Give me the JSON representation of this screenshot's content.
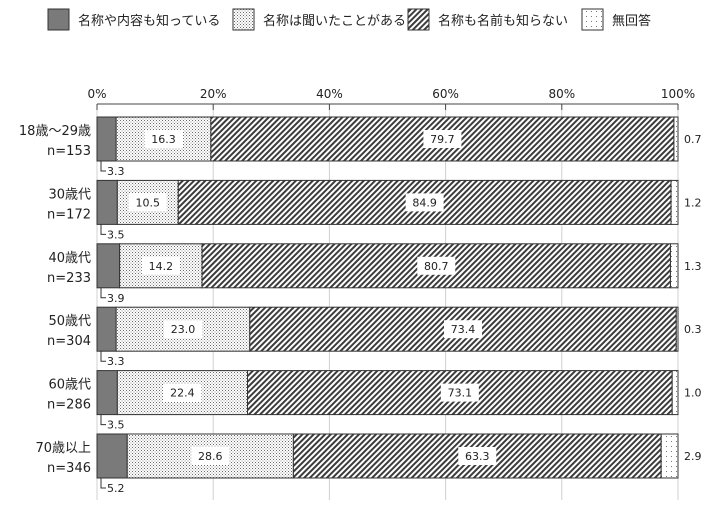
{
  "chart_data": {
    "type": "bar",
    "orientation": "horizontal",
    "stacked": true,
    "xlim": [
      0,
      100
    ],
    "x_ticks": [
      "0%",
      "20%",
      "40%",
      "60%",
      "80%",
      "100%"
    ],
    "legend_position": "top",
    "categories": [
      {
        "label": "18歳～29歳",
        "n": "n=153"
      },
      {
        "label": "30歳代",
        "n": "n=172"
      },
      {
        "label": "40歳代",
        "n": "n=233"
      },
      {
        "label": "50歳代",
        "n": "n=304"
      },
      {
        "label": "60歳代",
        "n": "n=286"
      },
      {
        "label": "70歳以上",
        "n": "n=346"
      }
    ],
    "series": [
      {
        "name": "名称や内容も知っている",
        "pattern": "solid-gray",
        "values": [
          3.3,
          3.5,
          3.9,
          3.3,
          3.5,
          5.2
        ]
      },
      {
        "name": "名称は聞いたことがある",
        "pattern": "dense-dots",
        "values": [
          16.3,
          10.5,
          14.2,
          23.0,
          22.4,
          28.6
        ]
      },
      {
        "name": "名称も名前も知らない",
        "pattern": "diagonal-hatch",
        "values": [
          79.7,
          84.9,
          80.7,
          73.4,
          73.1,
          63.3
        ]
      },
      {
        "name": "無回答",
        "pattern": "sparse-dots",
        "values": [
          0.7,
          1.2,
          1.3,
          0.3,
          1.0,
          2.9
        ]
      }
    ],
    "value_labels": [
      [
        "3.3",
        "16.3",
        "79.7",
        "0.7"
      ],
      [
        "3.5",
        "10.5",
        "84.9",
        "1.2"
      ],
      [
        "3.9",
        "14.2",
        "80.7",
        "1.3"
      ],
      [
        "3.3",
        "23.0",
        "73.4",
        "0.3"
      ],
      [
        "3.5",
        "22.4",
        "73.1",
        "1.0"
      ],
      [
        "5.2",
        "28.6",
        "63.3",
        "2.9"
      ]
    ]
  }
}
